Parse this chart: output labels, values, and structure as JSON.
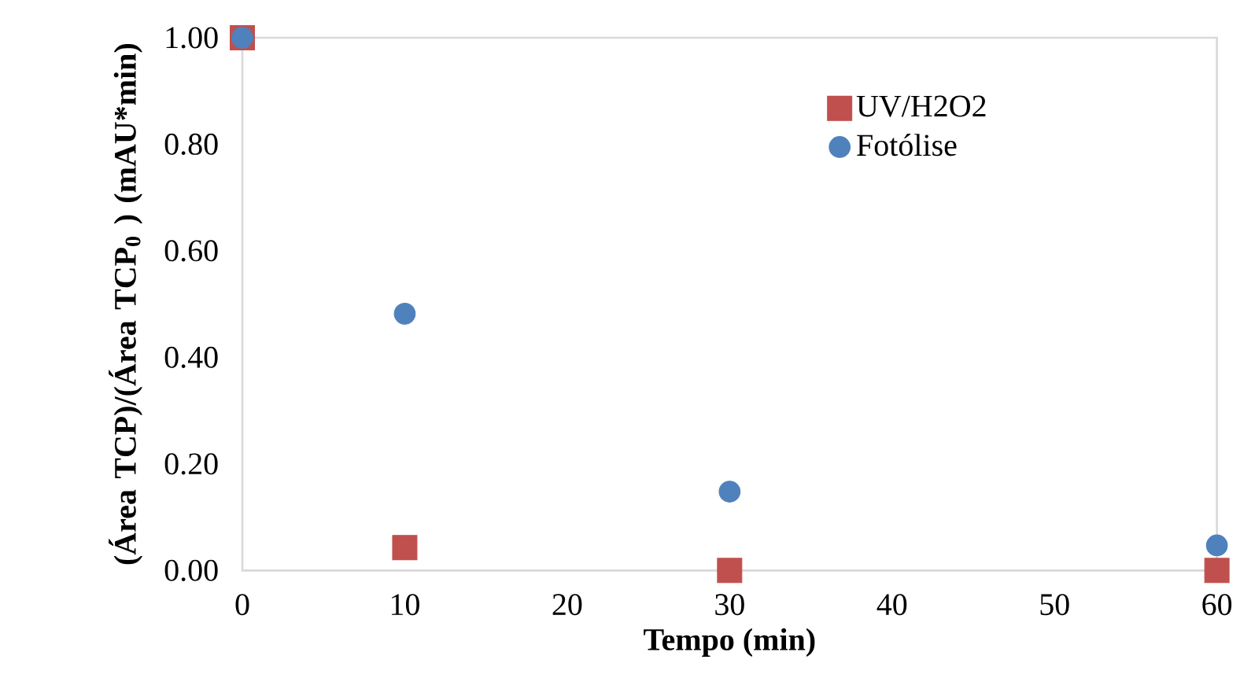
{
  "chart_data": {
    "type": "scatter",
    "xlabel": "Tempo (min)",
    "ylabel": "(Área TCP)/(Área TCP$_{0}$ ) (mAU*min)",
    "x": [
      0,
      10,
      30,
      60
    ],
    "series": [
      {
        "name": "UV/H2O2",
        "color": "#c0504d",
        "marker": "square",
        "values": [
          1.0,
          0.043,
          0.0,
          0.0
        ]
      },
      {
        "name": "Fotólise",
        "color": "#4f81bd",
        "marker": "circle",
        "values": [
          1.0,
          0.482,
          0.148,
          0.047
        ]
      }
    ],
    "xlim": [
      0,
      60
    ],
    "xticks": [
      0,
      10,
      20,
      30,
      40,
      50,
      60
    ],
    "ylim": [
      0,
      1.0
    ],
    "yticks": [
      {
        "value": 0,
        "label": "0.00"
      },
      {
        "value": 0.2,
        "label": "0.20"
      },
      {
        "value": 0.4,
        "label": "0.40"
      },
      {
        "value": 0.6,
        "label": "0.60"
      },
      {
        "value": 0.8,
        "label": "0.80"
      },
      {
        "value": 1.0,
        "label": "1.00"
      }
    ],
    "grid": false,
    "legend": "top right"
  }
}
